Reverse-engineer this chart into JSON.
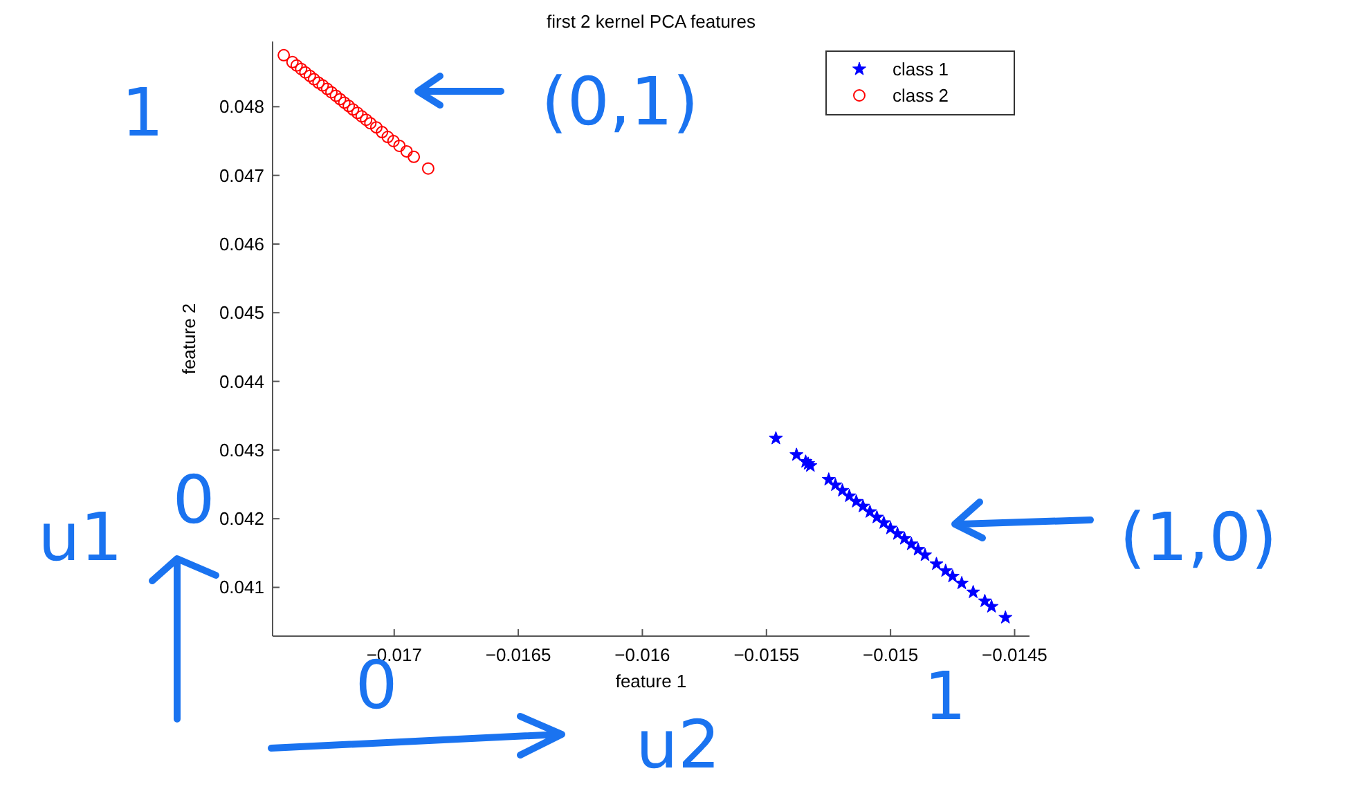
{
  "chart_data": {
    "type": "scatter",
    "title": "first 2 kernel PCA features",
    "xlabel": "feature 1",
    "ylabel": "feature 2",
    "xlim": [
      -0.01749,
      -0.01444
    ],
    "ylim": [
      0.04029,
      0.04895
    ],
    "xticks": [
      -0.017,
      -0.0165,
      -0.016,
      -0.0155,
      -0.015,
      -0.0145
    ],
    "yticks": [
      0.041,
      0.042,
      0.043,
      0.044,
      0.045,
      0.046,
      0.047,
      0.048
    ],
    "legend": "top right",
    "grid": false,
    "annotations": [
      "1",
      "(0,1)",
      "u1",
      "0",
      "0",
      "u2",
      "1",
      "(1,0)"
    ],
    "series": [
      {
        "name": "class 1",
        "color": "#0000ff",
        "marker": "star",
        "x": [
          -0.015462,
          -0.015379,
          -0.015342,
          -0.015332,
          -0.015323,
          -0.015249,
          -0.015222,
          -0.015194,
          -0.015166,
          -0.015138,
          -0.015111,
          -0.015083,
          -0.015055,
          -0.015027,
          -0.015,
          -0.014972,
          -0.014944,
          -0.014916,
          -0.014889,
          -0.014861,
          -0.014815,
          -0.014778,
          -0.01475,
          -0.014713,
          -0.014667,
          -0.01462,
          -0.014593,
          -0.014537
        ],
        "values": [
          0.04317,
          0.04293,
          0.04283,
          0.0428,
          0.04277,
          0.04257,
          0.04249,
          0.04241,
          0.04233,
          0.04225,
          0.04218,
          0.0421,
          0.04202,
          0.04194,
          0.04186,
          0.04178,
          0.04171,
          0.04163,
          0.04155,
          0.04147,
          0.04134,
          0.04124,
          0.04116,
          0.04106,
          0.04093,
          0.0408,
          0.04072,
          0.04056
        ]
      },
      {
        "name": "class 2",
        "color": "#ff0000",
        "marker": "circle",
        "x": [
          -0.017445,
          -0.01741,
          -0.017393,
          -0.017375,
          -0.017358,
          -0.01734,
          -0.017323,
          -0.017305,
          -0.017288,
          -0.01727,
          -0.017253,
          -0.017235,
          -0.017218,
          -0.017201,
          -0.017183,
          -0.017166,
          -0.017148,
          -0.017131,
          -0.017113,
          -0.017096,
          -0.017072,
          -0.017049,
          -0.017026,
          -0.017003,
          -0.016979,
          -0.01695,
          -0.016921,
          -0.016863
        ],
        "values": [
          0.04875,
          0.04865,
          0.0486,
          0.04855,
          0.0485,
          0.04845,
          0.0484,
          0.04835,
          0.04831,
          0.04826,
          0.04821,
          0.04816,
          0.04811,
          0.04806,
          0.04801,
          0.04796,
          0.04791,
          0.04786,
          0.04781,
          0.04776,
          0.0477,
          0.04763,
          0.04756,
          0.0475,
          0.04743,
          0.04735,
          0.04727,
          0.0471
        ]
      }
    ]
  }
}
